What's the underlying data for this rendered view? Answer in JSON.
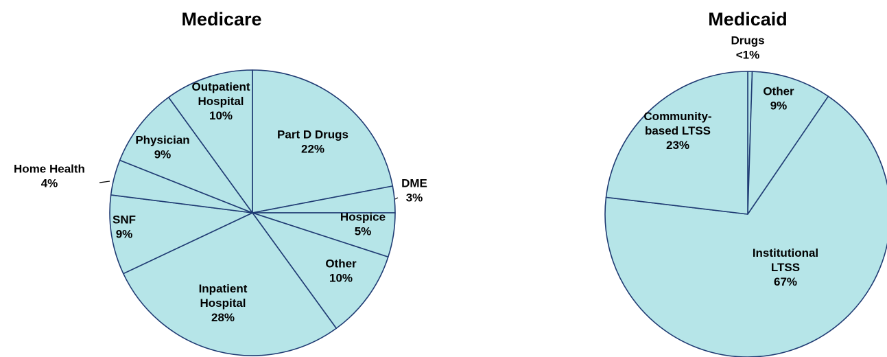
{
  "chart_data": [
    {
      "type": "pie",
      "title": "Medicare",
      "slice_color": "#b6e5e8",
      "edge_color": "#1f3b73",
      "slices": [
        {
          "label": [
            "Part D Drugs"
          ],
          "pct": "22%",
          "value": 22
        },
        {
          "label": [
            "DME"
          ],
          "pct": "3%",
          "value": 3
        },
        {
          "label": [
            "Hospice"
          ],
          "pct": "5%",
          "value": 5
        },
        {
          "label": [
            "Other"
          ],
          "pct": "10%",
          "value": 10
        },
        {
          "label": [
            "Inpatient",
            "Hospital"
          ],
          "pct": "28%",
          "value": 28
        },
        {
          "label": [
            "SNF"
          ],
          "pct": "9%",
          "value": 9
        },
        {
          "label": [
            "Home Health"
          ],
          "pct": "4%",
          "value": 4
        },
        {
          "label": [
            "Physician"
          ],
          "pct": "9%",
          "value": 9
        },
        {
          "label": [
            "Outpatient",
            "Hospital"
          ],
          "pct": "10%",
          "value": 10
        }
      ]
    },
    {
      "type": "pie",
      "title": "Medicaid",
      "slice_color": "#b6e5e8",
      "edge_color": "#1f3b73",
      "slices": [
        {
          "label": [
            "Drugs"
          ],
          "pct": "<1%",
          "value": 0.5
        },
        {
          "label": [
            "Other"
          ],
          "pct": "9%",
          "value": 9
        },
        {
          "label": [
            "Institutional",
            "LTSS"
          ],
          "pct": "67%",
          "value": 67
        },
        {
          "label": [
            "Community-",
            "based LTSS"
          ],
          "pct": "23%",
          "value": 23
        }
      ]
    }
  ]
}
